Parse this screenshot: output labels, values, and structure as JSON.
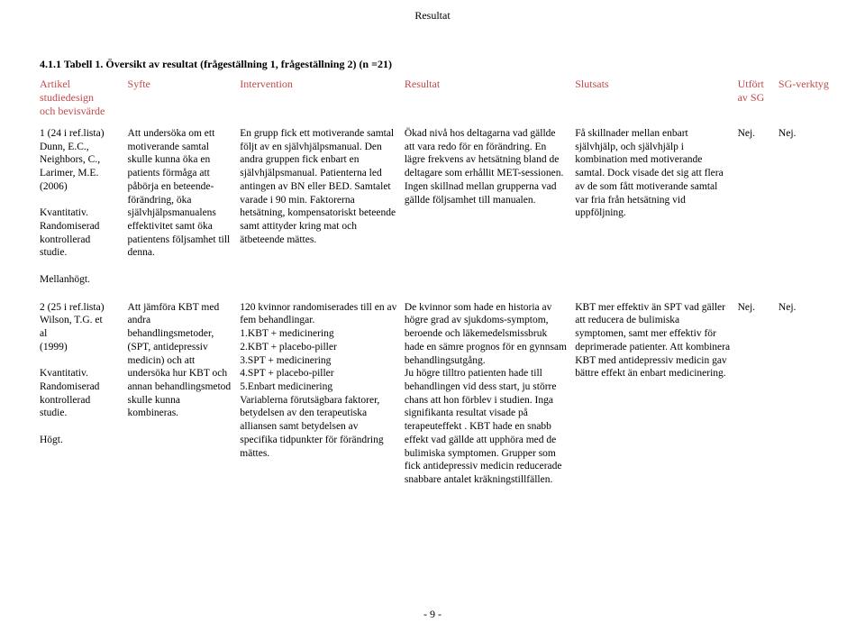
{
  "header": {
    "section": "Resultat"
  },
  "table": {
    "title": "4.1.1 Tabell 1. Översikt av resultat (frågeställning 1, frågeställning 2) (n =21)",
    "columns": {
      "c1": "Artikel\nstudiedesign\noch bevisvärde",
      "c2": "Syfte",
      "c3": "Intervention",
      "c4": "Resultat",
      "c5": "Slutsats",
      "c6": "Utfört\nav SG",
      "c7": "SG-verktyg"
    },
    "rows": [
      {
        "c1": "1 (24 i ref.lista)\nDunn, E.C.,\nNeighbors, C.,\nLarimer, M.E.\n(2006)\n\nKvantitativ.\nRandomiserad\nkontrollerad\nstudie.\n\nMellanhögt.",
        "c2": "   Att undersöka om ett motiverande samtal skulle kunna öka en patients förmåga att påbörja en beteende-förändring, öka självhjälpsmanualens effektivitet samt öka patientens följsamhet till denna.",
        "c3": "En grupp fick ett motiverande samtal följt av en självhjälpsmanual. Den andra gruppen fick enbart en självhjälpsmanual. Patienterna led antingen av BN eller BED. Samtalet varade i 90 min. Faktorerna hetsätning, kompensatoriskt beteende samt attityder kring mat och ätbeteende mättes.",
        "c4": "Ökad nivå hos deltagarna vad gällde att vara redo för en förändring. En lägre frekvens av hetsätning bland de deltagare som erhållit MET-sessionen. Ingen skillnad mellan grupperna vad gällde följsamhet till manualen.",
        "c5": "Få skillnader mellan enbart självhjälp, och självhjälp i kombination med motiverande samtal. Dock visade det sig att flera av de som fått motiverande samtal var fria från hetsätning vid uppföljning.",
        "c6": "Nej.",
        "c7": "Nej."
      },
      {
        "c1": "2 (25 i ref.lista)\nWilson, T.G. et\nal\n(1999)\n\nKvantitativ.\nRandomiserad\nkontrollerad\nstudie.\n\nHögt.",
        "c2": "Att jämföra KBT med andra behandlingsmetoder, (SPT, antidepressiv medicin) och att undersöka hur KBT och annan behandlingsmetod skulle kunna kombineras.",
        "c3": "   120 kvinnor randomiserades till en av fem behandlingar.\n 1.KBT + medicinering\n2.KBT + placebo-piller\n3.SPT + medicinering\n4.SPT + placebo-piller\n5.Enbart medicinering\nVariablerna förutsägbara faktorer, betydelsen av den terapeutiska alliansen samt betydelsen av specifika tidpunkter för förändring mättes.",
        "c4": "De kvinnor som hade en historia av högre grad av sjukdoms-symptom, beroende och läkemedelsmissbruk hade en sämre prognos för en gynnsam behandlingsutgång.\nJu högre tilltro patienten hade till behandlingen vid dess start, ju större chans att hon förblev i studien. Inga signifikanta resultat visade på terapeuteffekt . KBT hade en snabb effekt vad gällde att upphöra med de bulimiska symptomen. Grupper som fick antidepressiv medicin reducerade snabbare antalet kräkningstillfällen.",
        "c5": "KBT mer effektiv än SPT vad gäller att reducera de bulimiska symptomen, samt mer effektiv för deprimerade patienter. Att kombinera KBT med antidepressiv medicin gav bättre effekt än enbart medicinering.",
        "c6": "Nej.",
        "c7": "Nej."
      }
    ]
  },
  "footer": {
    "page": "- 9 -"
  }
}
